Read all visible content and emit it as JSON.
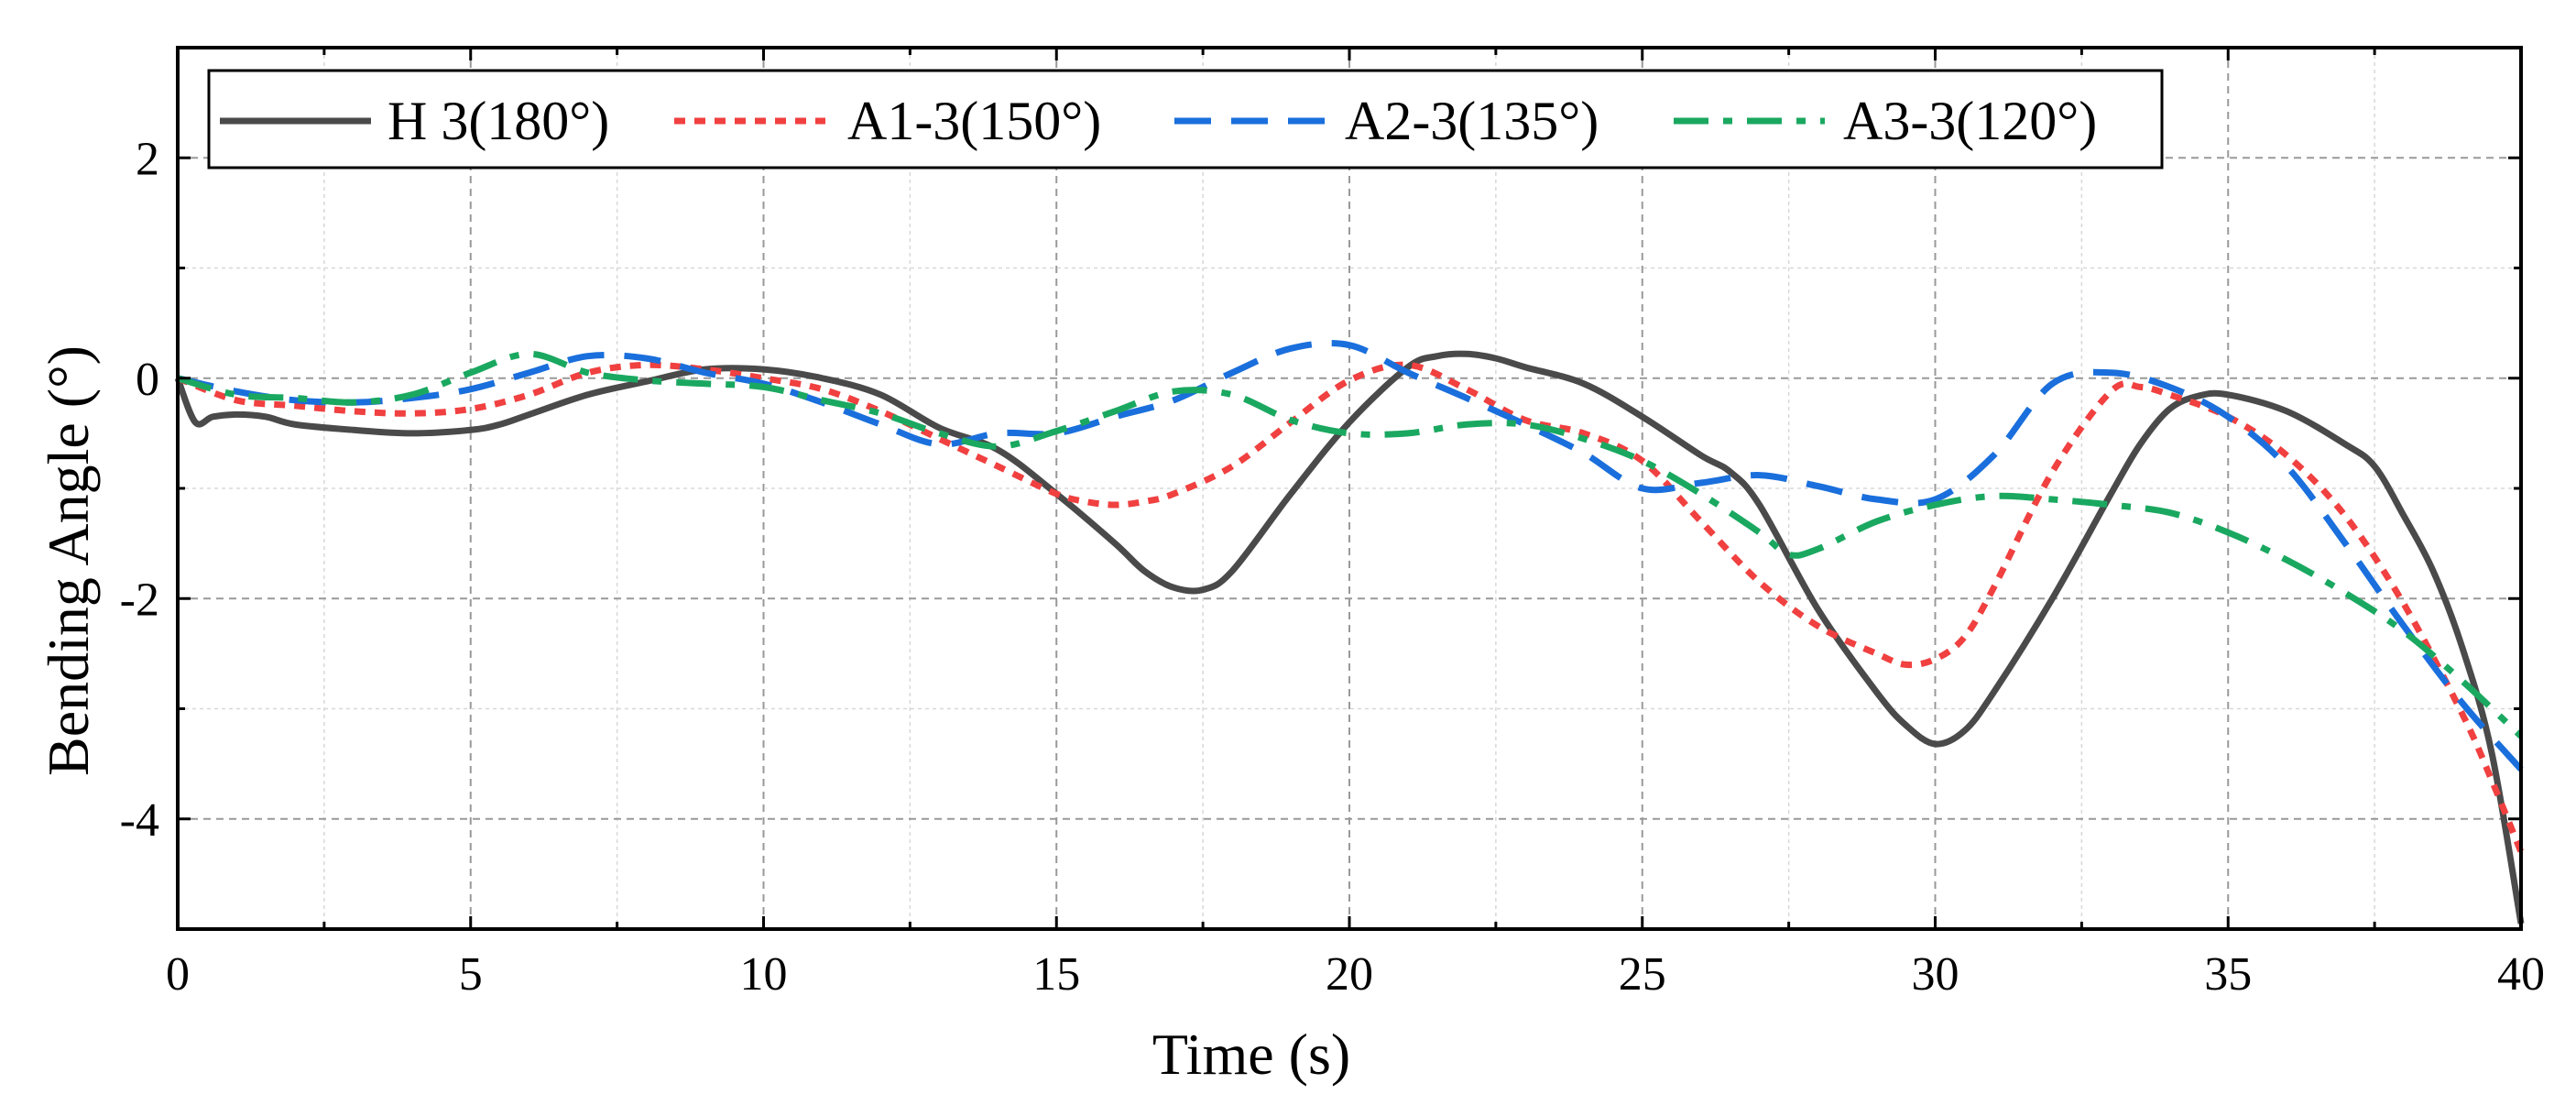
{
  "chart_data": {
    "type": "line",
    "title": "",
    "xlabel": "Time (s)",
    "ylabel": "Bending Angle (°)",
    "xlim": [
      0,
      40
    ],
    "ylim": [
      -5,
      3
    ],
    "xticks": [
      0,
      5,
      10,
      15,
      20,
      25,
      30,
      35,
      40
    ],
    "xtick_labels": [
      "0",
      "5",
      "10",
      "15",
      "20",
      "25",
      "30",
      "35",
      "40"
    ],
    "yticks": [
      -4,
      -2,
      0,
      2
    ],
    "ytick_labels": [
      "-4",
      "-2",
      "0",
      "2"
    ],
    "grid": true,
    "legend_position": "top-left",
    "series": [
      {
        "name": "H 3(180°)",
        "color": "#4a4a4a",
        "style": "solid",
        "x": [
          0,
          0.3,
          0.6,
          1,
          1.5,
          2,
          3,
          4,
          5,
          5.5,
          6,
          7,
          8,
          9,
          10,
          11,
          12,
          13,
          14,
          15,
          16,
          16.5,
          17,
          17.5,
          18,
          19,
          20,
          21,
          21.5,
          22,
          22.5,
          23,
          24,
          25,
          26,
          26.5,
          27,
          28,
          29,
          29.5,
          30,
          30.5,
          31,
          32,
          33,
          33.5,
          34,
          34.5,
          35,
          36,
          37,
          37.5,
          38,
          38.5,
          39,
          39.5,
          40
        ],
        "y": [
          0,
          -0.4,
          -0.35,
          -0.33,
          -0.35,
          -0.42,
          -0.47,
          -0.5,
          -0.47,
          -0.42,
          -0.33,
          -0.15,
          -0.03,
          0.08,
          0.08,
          0.0,
          -0.15,
          -0.45,
          -0.65,
          -1.05,
          -1.5,
          -1.75,
          -1.9,
          -1.92,
          -1.75,
          -1.05,
          -0.4,
          0.1,
          0.2,
          0.22,
          0.18,
          0.1,
          -0.05,
          -0.35,
          -0.7,
          -0.85,
          -1.15,
          -2.1,
          -2.85,
          -3.15,
          -3.32,
          -3.2,
          -2.85,
          -2.0,
          -1.05,
          -0.6,
          -0.28,
          -0.16,
          -0.15,
          -0.3,
          -0.6,
          -0.8,
          -1.25,
          -1.75,
          -2.45,
          -3.4,
          -4.95
        ]
      },
      {
        "name": "A1-3(150°)",
        "color": "#f04040",
        "style": "dotted",
        "x": [
          0,
          1,
          2,
          3,
          4,
          5,
          6,
          7,
          8,
          9,
          10,
          11,
          12,
          13,
          14,
          15,
          15.5,
          16,
          16.5,
          17,
          18,
          19,
          20,
          21,
          22,
          23,
          24,
          25,
          26,
          27,
          28,
          29,
          29.5,
          30,
          30.5,
          31,
          32,
          33,
          33.5,
          34,
          35,
          36,
          37,
          38,
          39,
          39.5,
          40
        ],
        "y": [
          0,
          -0.2,
          -0.25,
          -0.3,
          -0.32,
          -0.28,
          -0.15,
          0.05,
          0.12,
          0.08,
          0.0,
          -0.1,
          -0.3,
          -0.55,
          -0.8,
          -1.05,
          -1.12,
          -1.15,
          -1.12,
          -1.05,
          -0.8,
          -0.4,
          -0.02,
          0.12,
          -0.1,
          -0.38,
          -0.5,
          -0.75,
          -1.3,
          -1.85,
          -2.25,
          -2.5,
          -2.6,
          -2.55,
          -2.35,
          -1.9,
          -0.85,
          -0.12,
          -0.08,
          -0.15,
          -0.35,
          -0.7,
          -1.25,
          -2.05,
          -3.05,
          -3.65,
          -4.3
        ]
      },
      {
        "name": "A2-3(135°)",
        "color": "#1a6fdc",
        "style": "dashed",
        "x": [
          0,
          1,
          2,
          3,
          4,
          5,
          6,
          7,
          8,
          9,
          10,
          11,
          12,
          13,
          14,
          15,
          16,
          17,
          18,
          19,
          20,
          21,
          22,
          23,
          24,
          25,
          26,
          27,
          28,
          29,
          30,
          31,
          32,
          33,
          34,
          35,
          36,
          37,
          38,
          39,
          40
        ],
        "y": [
          0,
          -0.12,
          -0.2,
          -0.22,
          -0.18,
          -0.1,
          0.05,
          0.2,
          0.18,
          0.05,
          -0.05,
          -0.22,
          -0.42,
          -0.6,
          -0.5,
          -0.5,
          -0.35,
          -0.2,
          0.05,
          0.27,
          0.3,
          0.05,
          -0.18,
          -0.42,
          -0.68,
          -1.0,
          -0.95,
          -0.88,
          -0.98,
          -1.1,
          -1.1,
          -0.7,
          -0.05,
          0.05,
          -0.08,
          -0.35,
          -0.8,
          -1.5,
          -2.25,
          -2.95,
          -3.55
        ]
      },
      {
        "name": "A3-3(120°)",
        "color": "#1aa860",
        "style": "dashdot",
        "x": [
          0,
          1,
          2,
          3,
          4,
          5,
          6,
          7,
          8,
          9,
          10,
          11,
          12,
          13,
          14,
          15,
          16,
          17,
          18,
          19,
          20,
          21,
          22,
          23,
          24,
          25,
          26,
          27,
          27.5,
          28,
          29,
          30,
          31,
          32,
          33,
          34,
          35,
          36,
          37,
          38,
          39,
          40
        ],
        "y": [
          0,
          -0.15,
          -0.18,
          -0.22,
          -0.15,
          0.05,
          0.22,
          0.05,
          -0.02,
          -0.05,
          -0.08,
          -0.2,
          -0.32,
          -0.5,
          -0.62,
          -0.48,
          -0.3,
          -0.12,
          -0.15,
          -0.38,
          -0.5,
          -0.5,
          -0.42,
          -0.42,
          -0.55,
          -0.75,
          -1.05,
          -1.4,
          -1.6,
          -1.55,
          -1.3,
          -1.15,
          -1.07,
          -1.1,
          -1.15,
          -1.22,
          -1.4,
          -1.65,
          -1.95,
          -2.3,
          -2.75,
          -3.25
        ]
      }
    ]
  }
}
